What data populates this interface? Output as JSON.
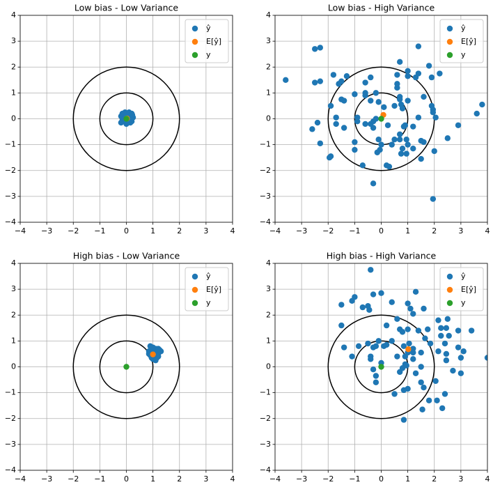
{
  "chart_data": [
    {
      "type": "scatter",
      "title": "Low bias - Low Variance",
      "xlim": [
        -4,
        4
      ],
      "ylim": [
        -4,
        4
      ],
      "xticks": [
        {
          "value": -4,
          "label": "−4"
        },
        {
          "value": -3,
          "label": "−3"
        },
        {
          "value": -2,
          "label": "−2"
        },
        {
          "value": -1,
          "label": "−1"
        },
        0,
        1,
        2,
        3,
        4
      ],
      "yticks": [
        {
          "value": -4,
          "label": "−4"
        },
        {
          "value": -3,
          "label": "−3"
        },
        {
          "value": -2,
          "label": "−2"
        },
        {
          "value": -1,
          "label": "−1"
        },
        0,
        1,
        2,
        3,
        4
      ],
      "grid": true,
      "legend": "upper right",
      "circles": [
        1,
        2
      ],
      "circle_color": "#000000",
      "series": [
        {
          "name": "ŷ",
          "color": "#1f77b4",
          "x": [
            0.0,
            0.1,
            -0.1,
            0.15,
            -0.15,
            0.05,
            0.2,
            -0.05,
            0.1,
            -0.2,
            0.25,
            0.0,
            -0.1,
            0.15,
            0.05,
            -0.05,
            0.2,
            -0.15,
            0.1,
            -0.2,
            0.22,
            0.0
          ],
          "values": [
            0.0,
            0.2,
            0.15,
            0.1,
            -0.05,
            -0.15,
            -0.1,
            0.25,
            0.25,
            0.1,
            0.05,
            -0.2,
            -0.1,
            -0.15,
            0.1,
            0.05,
            0.2,
            0.2,
            -0.05,
            -0.15,
            0.15,
            0.15
          ]
        },
        {
          "name": "E[ŷ]",
          "color": "#ff7f0e",
          "x": [
            0.02
          ],
          "values": [
            0.01
          ]
        },
        {
          "name": "y",
          "color": "#2ca02c",
          "x": [
            0
          ],
          "values": [
            0
          ]
        }
      ]
    },
    {
      "type": "scatter",
      "title": "Low bias - High Variance",
      "xlim": [
        -4,
        4
      ],
      "ylim": [
        -4,
        4
      ],
      "xticks": [
        {
          "value": -4,
          "label": "−4"
        },
        {
          "value": -3,
          "label": "−3"
        },
        {
          "value": -2,
          "label": "−2"
        },
        {
          "value": -1,
          "label": "−1"
        },
        0,
        1,
        2,
        3,
        4
      ],
      "yticks": [
        {
          "value": -4,
          "label": "−4"
        },
        {
          "value": -3,
          "label": "−3"
        },
        {
          "value": -2,
          "label": "−2"
        },
        {
          "value": -1,
          "label": "−1"
        },
        0,
        1,
        2,
        3,
        4
      ],
      "grid": true,
      "legend": "upper right",
      "circles": [
        1,
        2
      ],
      "circle_color": "#000000",
      "series": [
        {
          "name": "ŷ",
          "color": "#1f77b4",
          "x": [
            -3.6,
            -2.5,
            -2.3,
            -2.5,
            -2.3,
            -1.8,
            -1.6,
            -1.5,
            -1.3,
            -1.5,
            -1.4,
            -1.9,
            -2.6,
            -2.4,
            -2.3,
            -1.7,
            -1.7,
            -1.4,
            -1.9,
            -1.95,
            -1.0,
            -1.0,
            -1.0,
            -0.9,
            -0.9,
            -0.7,
            -0.6,
            -0.6,
            -0.6,
            -0.4,
            -0.4,
            -0.2,
            -0.1,
            -0.6,
            -0.4,
            -0.3,
            -0.3,
            -0.2,
            -0.1,
            -0.15,
            -0.05,
            0.0,
            -0.3,
            0.2,
            0.3,
            0.1,
            0.25,
            0.4,
            0.5,
            0.6,
            0.6,
            0.6,
            0.7,
            0.5,
            0.7,
            0.75,
            0.8,
            0.7,
            0.7,
            0.7,
            0.8,
            0.75,
            0.9,
            0.85,
            0.95,
            1.0,
            0.95,
            1.0,
            1.0,
            1.0,
            1.2,
            1.2,
            1.3,
            1.4,
            1.4,
            1.4,
            1.5,
            1.5,
            1.6,
            1.6,
            1.8,
            1.9,
            1.9,
            1.95,
            1.95,
            2.0,
            2.05,
            2.2,
            1.95,
            2.5,
            2.9,
            3.6,
            3.8
          ],
          "values": [
            1.5,
            2.7,
            2.75,
            1.4,
            1.45,
            1.7,
            1.35,
            1.45,
            1.65,
            0.75,
            0.7,
            0.5,
            -0.4,
            -0.15,
            -0.95,
            0.05,
            -0.2,
            -0.35,
            -1.45,
            -1.5,
            0.95,
            -0.9,
            -1.2,
            0.05,
            -0.1,
            -1.8,
            1.0,
            0.9,
            1.4,
            1.6,
            0.7,
            1.0,
            0.65,
            -0.2,
            -0.2,
            -0.35,
            -0.1,
            0.0,
            -0.8,
            -1.3,
            -1.2,
            -1.0,
            -2.5,
            -1.8,
            -1.85,
            0.45,
            -0.25,
            -1.0,
            -0.8,
            1.2,
            1.35,
            1.7,
            2.2,
            0.5,
            0.75,
            0.55,
            0.4,
            0.85,
            -0.6,
            -0.8,
            -1.15,
            -1.35,
            -0.25,
            -0.3,
            -0.8,
            -1.0,
            -1.35,
            1.65,
            1.85,
            0.7,
            -0.3,
            -1.15,
            1.6,
            1.75,
            2.8,
            0.05,
            -0.85,
            -1.55,
            -0.9,
            0.85,
            2.05,
            1.6,
            0.5,
            0.35,
            0.25,
            -1.25,
            0.05,
            1.75,
            -3.1,
            -0.75,
            -0.25,
            0.2,
            0.55
          ]
        },
        {
          "name": "E[ŷ]",
          "color": "#ff7f0e",
          "x": [
            0.08
          ],
          "values": [
            0.15
          ]
        },
        {
          "name": "y",
          "color": "#2ca02c",
          "x": [
            0
          ],
          "values": [
            0
          ]
        }
      ]
    },
    {
      "type": "scatter",
      "title": "High bias - Low Variance",
      "xlim": [
        -4,
        4
      ],
      "ylim": [
        -4,
        4
      ],
      "xticks": [
        {
          "value": -4,
          "label": "−4"
        },
        {
          "value": -3,
          "label": "−3"
        },
        {
          "value": -2,
          "label": "−2"
        },
        {
          "value": -1,
          "label": "−1"
        },
        0,
        1,
        2,
        3,
        4
      ],
      "yticks": [
        {
          "value": -4,
          "label": "−4"
        },
        {
          "value": -3,
          "label": "−3"
        },
        {
          "value": -2,
          "label": "−2"
        },
        {
          "value": -1,
          "label": "−1"
        },
        0,
        1,
        2,
        3,
        4
      ],
      "grid": true,
      "legend": "upper right",
      "circles": [
        1,
        2
      ],
      "circle_color": "#000000",
      "series": [
        {
          "name": "ŷ",
          "color": "#1f77b4",
          "x": [
            0.9,
            0.85,
            0.9,
            0.95,
            1.0,
            1.05,
            1.0,
            1.1,
            1.15,
            1.2,
            1.15,
            1.05,
            1.25,
            1.3,
            0.95,
            1.1,
            0.85,
            1.2,
            1.0,
            1.1,
            1.2,
            0.95
          ],
          "values": [
            0.8,
            0.6,
            0.45,
            0.35,
            0.3,
            0.55,
            0.65,
            0.7,
            0.6,
            0.5,
            0.35,
            0.4,
            0.65,
            0.6,
            0.55,
            0.45,
            0.5,
            0.7,
            0.75,
            0.25,
            0.4,
            0.7
          ]
        },
        {
          "name": "E[ŷ]",
          "color": "#ff7f0e",
          "x": [
            1.0
          ],
          "values": [
            0.48
          ]
        },
        {
          "name": "y",
          "color": "#2ca02c",
          "x": [
            0
          ],
          "values": [
            0
          ]
        }
      ]
    },
    {
      "type": "scatter",
      "title": "High bias - High Variance",
      "xlim": [
        -4,
        4
      ],
      "ylim": [
        -4,
        4
      ],
      "xticks": [
        {
          "value": -4,
          "label": "−4"
        },
        {
          "value": -3,
          "label": "−3"
        },
        {
          "value": -2,
          "label": "−2"
        },
        {
          "value": -1,
          "label": "−1"
        },
        0,
        1,
        2,
        3,
        4
      ],
      "yticks": [
        {
          "value": -4,
          "label": "−4"
        },
        {
          "value": -3,
          "label": "−3"
        },
        {
          "value": -2,
          "label": "−2"
        },
        {
          "value": -1,
          "label": "−1"
        },
        0,
        1,
        2,
        3,
        4
      ],
      "grid": true,
      "legend": "upper right",
      "circles": [
        1,
        2
      ],
      "circle_color": "#000000",
      "series": [
        {
          "name": "ŷ",
          "color": "#1f77b4",
          "x": [
            -0.4,
            -1.0,
            -1.1,
            -1.5,
            -0.5,
            -0.45,
            -0.7,
            -0.3,
            0.0,
            0.4,
            1.3,
            1.0,
            1.1,
            1.6,
            1.2,
            -1.5,
            -1.4,
            -1.1,
            -0.85,
            -0.5,
            -0.4,
            -0.4,
            -0.3,
            -0.2,
            -0.1,
            -0.3,
            -0.2,
            -0.2,
            0.0,
            0.1,
            0.2,
            0.2,
            0.4,
            0.5,
            0.6,
            0.6,
            0.7,
            0.8,
            0.8,
            0.7,
            0.85,
            0.9,
            0.95,
            0.85,
            1.0,
            0.85,
            0.9,
            1.0,
            1.0,
            1.05,
            1.2,
            1.3,
            1.4,
            1.5,
            1.5,
            1.5,
            1.6,
            1.55,
            1.65,
            1.75,
            1.8,
            1.85,
            2.05,
            2.1,
            2.15,
            2.15,
            2.25,
            2.25,
            2.3,
            2.4,
            2.4,
            2.45,
            2.45,
            2.45,
            2.5,
            2.55,
            2.7,
            2.9,
            2.9,
            3.0,
            3.0,
            3.1,
            3.4,
            4.0,
            1.2,
            1.2
          ],
          "values": [
            3.75,
            2.7,
            2.55,
            2.4,
            2.35,
            2.2,
            2.3,
            2.8,
            2.85,
            2.5,
            2.9,
            2.45,
            2.25,
            2.25,
            2.05,
            1.6,
            0.75,
            0.4,
            0.8,
            0.9,
            0.4,
            0.3,
            0.75,
            0.8,
            1.0,
            -0.1,
            -0.35,
            -0.6,
            0.15,
            0.8,
            0.85,
            1.6,
            1.0,
            -1.05,
            0.4,
            1.85,
            1.45,
            1.35,
            -0.05,
            -0.2,
            0.8,
            0.1,
            0.05,
            -0.9,
            -0.85,
            -2.05,
            0.4,
            0.55,
            1.45,
            0.9,
            0.3,
            -0.25,
            1.4,
            0.0,
            0.55,
            -0.6,
            -0.8,
            -1.65,
            1.1,
            1.45,
            -1.3,
            0.9,
            -0.55,
            -1.3,
            0.6,
            1.8,
            1.2,
            1.5,
            -1.6,
            -1.05,
            0.9,
            0.5,
            0.25,
            1.5,
            1.85,
            1.2,
            -0.15,
            0.75,
            1.4,
            -0.25,
            0.35,
            0.6,
            1.4,
            0.35,
            0.55,
            0.7
          ]
        },
        {
          "name": "E[ŷ]",
          "color": "#ff7f0e",
          "x": [
            1.02
          ],
          "values": [
            0.68
          ]
        },
        {
          "name": "y",
          "color": "#2ca02c",
          "x": [
            0
          ],
          "values": [
            0
          ]
        }
      ]
    }
  ]
}
